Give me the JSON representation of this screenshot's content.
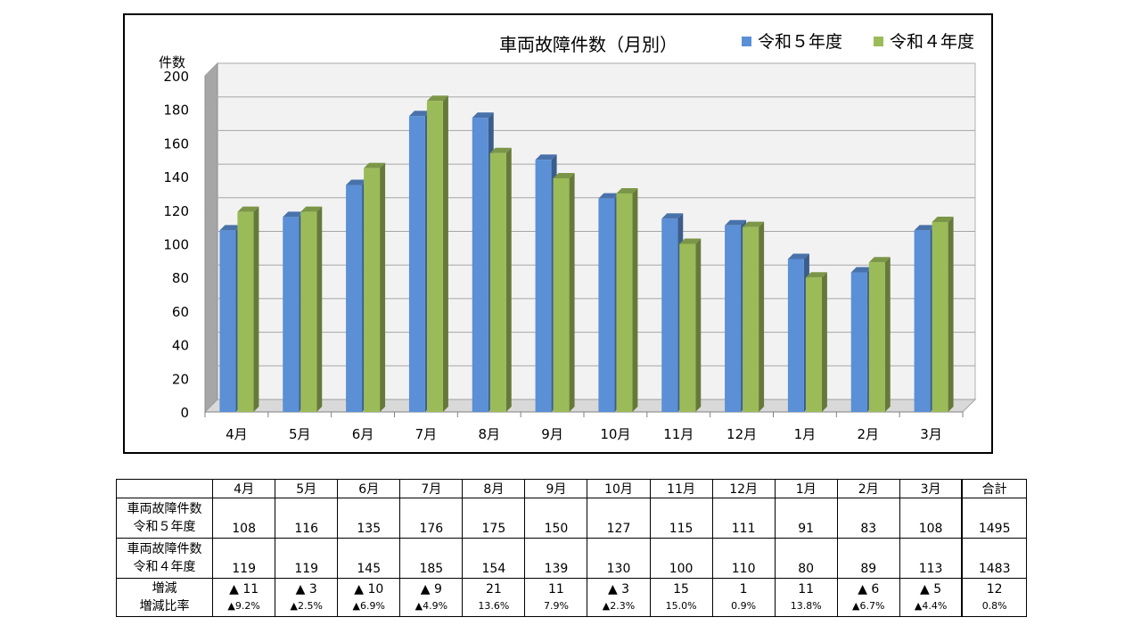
{
  "chart_data": {
    "type": "bar",
    "title": "車両故障件数（月別）",
    "ylabel": "件数",
    "ylim": [
      0,
      200
    ],
    "yticks": [
      "0",
      "20",
      "40",
      "60",
      "80",
      "100",
      "120",
      "140",
      "160",
      "180",
      "200"
    ],
    "categories": [
      "4月",
      "5月",
      "6月",
      "7月",
      "8月",
      "9月",
      "10月",
      "11月",
      "12月",
      "1月",
      "2月",
      "3月"
    ],
    "series": [
      {
        "name": "令和５年度",
        "color": "#5b8fd6",
        "values": [
          108,
          116,
          135,
          176,
          175,
          150,
          127,
          115,
          111,
          91,
          83,
          108
        ]
      },
      {
        "name": "令和４年度",
        "color": "#9bbb59",
        "values": [
          119,
          119,
          145,
          185,
          154,
          139,
          130,
          100,
          110,
          80,
          89,
          113
        ]
      }
    ],
    "legend": "top-right",
    "grid": true
  },
  "table": {
    "headers": [
      "4月",
      "5月",
      "6月",
      "7月",
      "8月",
      "9月",
      "10月",
      "11月",
      "12月",
      "1月",
      "2月",
      "3月",
      "合計"
    ],
    "row_r5": {
      "label1": "車両故障件数",
      "label2": "令和５年度",
      "values": [
        "108",
        "116",
        "135",
        "176",
        "175",
        "150",
        "127",
        "115",
        "111",
        "91",
        "83",
        "108",
        "1495"
      ]
    },
    "row_r4": {
      "label1": "車両故障件数",
      "label2": "令和４年度",
      "values": [
        "119",
        "119",
        "145",
        "185",
        "154",
        "139",
        "130",
        "100",
        "110",
        "80",
        "89",
        "113",
        "1483"
      ]
    },
    "row_diff": {
      "label1": "増減",
      "label2": "増減比率",
      "diff": [
        "▲ 11",
        "▲ 3",
        "▲ 10",
        "▲ 9",
        "21",
        "11",
        "▲ 3",
        "15",
        "1",
        "11",
        "▲ 6",
        "▲ 5",
        "12"
      ],
      "ratio": [
        "▲9.2%",
        "▲2.5%",
        "▲6.9%",
        "▲4.9%",
        "13.6%",
        "7.9%",
        "▲2.3%",
        "15.0%",
        "0.9%",
        "13.8%",
        "▲6.7%",
        "▲4.4%",
        "0.8%"
      ]
    }
  }
}
